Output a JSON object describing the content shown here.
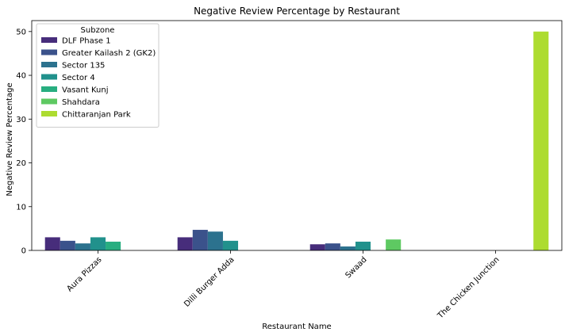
{
  "chart_data": {
    "type": "bar",
    "title": "Negative Review Percentage by Restaurant",
    "xlabel": "Restaurant Name",
    "ylabel": "Negative Review Percentage",
    "ylim": [
      0,
      52.5
    ],
    "yticks": [
      0,
      10,
      20,
      30,
      40,
      50
    ],
    "grid": false,
    "legend_title": "Subzone",
    "legend_position": "top-left",
    "categories": [
      "Aura Pizzas",
      "Dilli Burger Adda",
      "Swaad",
      "The Chicken Junction"
    ],
    "series": [
      {
        "name": "DLF Phase 1",
        "color": "#472d7b",
        "values": [
          3.0,
          3.0,
          1.4,
          null
        ]
      },
      {
        "name": "Greater Kailash 2 (GK2)",
        "color": "#3b528b",
        "values": [
          2.2,
          4.7,
          1.6,
          null
        ]
      },
      {
        "name": "Sector 135",
        "color": "#2c728e",
        "values": [
          1.6,
          4.3,
          0.9,
          null
        ]
      },
      {
        "name": "Sector 4",
        "color": "#21918c",
        "values": [
          3.0,
          2.2,
          2.0,
          null
        ]
      },
      {
        "name": "Vasant Kunj",
        "color": "#28ae80",
        "values": [
          2.0,
          null,
          null,
          null
        ]
      },
      {
        "name": "Shahdara",
        "color": "#5ec962",
        "values": [
          null,
          null,
          2.5,
          null
        ]
      },
      {
        "name": "Chittaranjan Park",
        "color": "#addc30",
        "values": [
          null,
          null,
          null,
          50.0
        ]
      }
    ]
  }
}
